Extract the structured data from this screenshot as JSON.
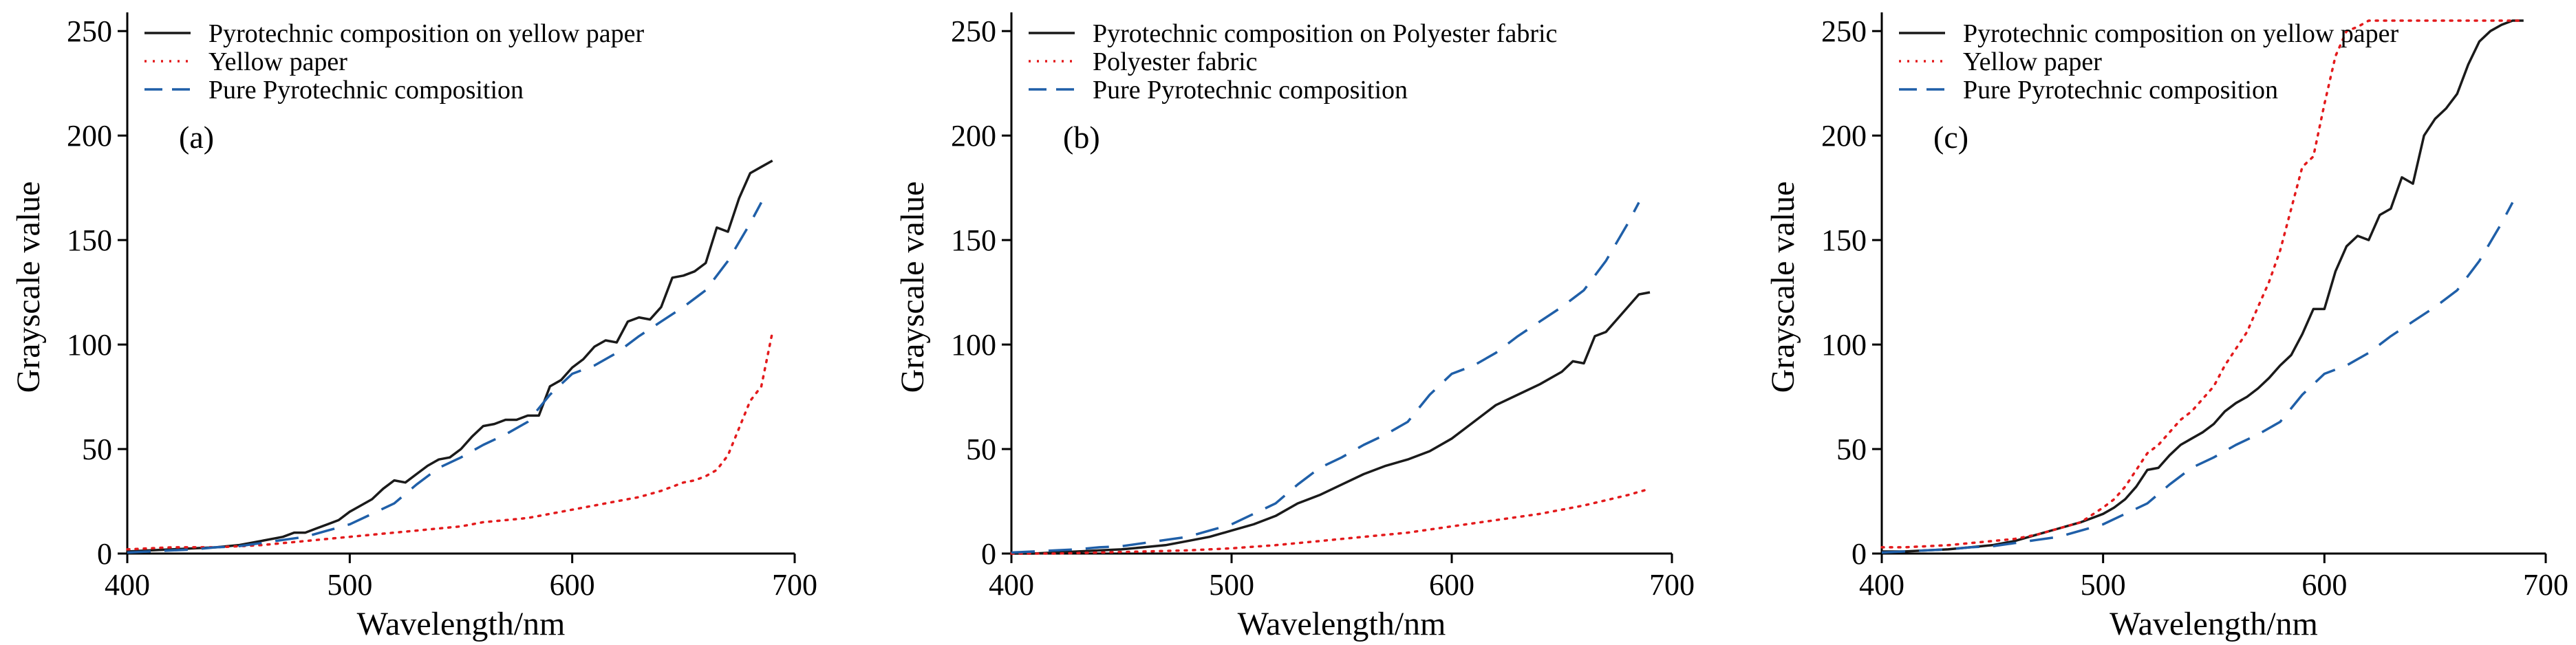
{
  "chart_data": [
    {
      "type": "line",
      "panel_label": "(a)",
      "xlabel": "Wavelength/nm",
      "ylabel": "Grayscale value",
      "xlim": [
        400,
        700
      ],
      "ylim": [
        0,
        255
      ],
      "xticks": [
        400,
        500,
        600,
        700
      ],
      "yticks": [
        0,
        50,
        100,
        150,
        200,
        250
      ],
      "legend_position": "top-left",
      "series": [
        {
          "name": "Pyrotechnic composition on yellow paper",
          "style": "solid",
          "color": "#1a1a1a",
          "x": [
            400,
            410,
            420,
            430,
            440,
            450,
            460,
            470,
            475,
            480,
            485,
            490,
            495,
            500,
            505,
            510,
            515,
            520,
            525,
            530,
            535,
            540,
            545,
            550,
            555,
            560,
            565,
            570,
            575,
            580,
            585,
            590,
            595,
            600,
            605,
            610,
            615,
            620,
            625,
            630,
            635,
            640,
            645,
            650,
            655,
            660,
            665,
            670,
            675,
            680,
            685,
            690
          ],
          "y": [
            1,
            1.5,
            2,
            2.5,
            3,
            4,
            6,
            8,
            10,
            10,
            12,
            14,
            16,
            20,
            23,
            26,
            31,
            35,
            34,
            38,
            42,
            45,
            46,
            50,
            56,
            61,
            62,
            64,
            64,
            66,
            66,
            80,
            83,
            89,
            93,
            99,
            102,
            101,
            111,
            113,
            112,
            118,
            132,
            133,
            135,
            139,
            156,
            154,
            170,
            182,
            185,
            188
          ]
        },
        {
          "name": "Yellow paper",
          "style": "dotted",
          "color": "#e31a1c",
          "x": [
            400,
            410,
            420,
            430,
            440,
            450,
            460,
            470,
            480,
            490,
            500,
            510,
            520,
            530,
            540,
            550,
            560,
            570,
            580,
            590,
            600,
            610,
            620,
            630,
            640,
            650,
            655,
            660,
            665,
            670,
            675,
            680,
            685,
            690
          ],
          "y": [
            2,
            2.5,
            3,
            3,
            3,
            3.5,
            4,
            5,
            6,
            7,
            8,
            9,
            10,
            11,
            12,
            13,
            15,
            16,
            17,
            19,
            21,
            23,
            25,
            27,
            30,
            34,
            35,
            37,
            40,
            47,
            60,
            73,
            80,
            106
          ]
        },
        {
          "name": "Pure Pyrotechnic composition",
          "style": "dashed",
          "color": "#1f5fa8",
          "x": [
            400,
            410,
            420,
            430,
            440,
            450,
            460,
            470,
            480,
            490,
            500,
            510,
            520,
            530,
            540,
            550,
            560,
            570,
            580,
            590,
            600,
            610,
            620,
            630,
            640,
            650,
            660,
            670,
            680,
            685
          ],
          "y": [
            0.5,
            1,
            1.5,
            2,
            3,
            3.5,
            5,
            6.5,
            8,
            11,
            14,
            19,
            24,
            33,
            41,
            46,
            52,
            57,
            63,
            76,
            86,
            90,
            96,
            104,
            111,
            118,
            126,
            140,
            158,
            168
          ]
        }
      ]
    },
    {
      "type": "line",
      "panel_label": "(b)",
      "xlabel": "Wavelength/nm",
      "ylabel": "Grayscale value",
      "xlim": [
        400,
        700
      ],
      "ylim": [
        0,
        255
      ],
      "xticks": [
        400,
        500,
        600,
        700
      ],
      "yticks": [
        0,
        50,
        100,
        150,
        200,
        250
      ],
      "legend_position": "top-left",
      "series": [
        {
          "name": "Pyrotechnic composition on Polyester fabric",
          "style": "solid",
          "color": "#1a1a1a",
          "x": [
            400,
            410,
            420,
            430,
            440,
            450,
            460,
            470,
            480,
            490,
            500,
            510,
            520,
            530,
            540,
            550,
            560,
            570,
            580,
            590,
            600,
            610,
            620,
            630,
            640,
            650,
            655,
            660,
            665,
            670,
            675,
            680,
            685,
            690
          ],
          "y": [
            0,
            0,
            0.5,
            1,
            1.5,
            2,
            3,
            4,
            6,
            8,
            11,
            14,
            18,
            24,
            28,
            33,
            38,
            42,
            45,
            49,
            55,
            63,
            71,
            76,
            81,
            87,
            92,
            91,
            104,
            106,
            112,
            118,
            124,
            125
          ]
        },
        {
          "name": "Polyester fabric",
          "style": "dotted",
          "color": "#e31a1c",
          "x": [
            400,
            420,
            440,
            460,
            480,
            500,
            520,
            540,
            560,
            580,
            600,
            620,
            640,
            660,
            680,
            690
          ],
          "y": [
            0,
            0,
            0.5,
            1,
            1.5,
            2.5,
            4,
            6,
            8,
            10,
            13,
            16,
            19,
            23,
            28,
            31
          ]
        },
        {
          "name": "Pure Pyrotechnic composition",
          "style": "dashed",
          "color": "#1f5fa8",
          "x": [
            400,
            410,
            420,
            430,
            440,
            450,
            460,
            470,
            480,
            490,
            500,
            510,
            520,
            530,
            540,
            550,
            560,
            570,
            580,
            590,
            600,
            610,
            620,
            630,
            640,
            650,
            660,
            670,
            680,
            685
          ],
          "y": [
            0.5,
            1,
            1.5,
            2,
            3,
            3.5,
            5,
            6.5,
            8,
            11,
            14,
            19,
            24,
            33,
            41,
            46,
            52,
            57,
            63,
            76,
            86,
            90,
            96,
            104,
            111,
            118,
            126,
            140,
            158,
            168
          ]
        }
      ]
    },
    {
      "type": "line",
      "panel_label": "(c)",
      "xlabel": "Wavelength/nm",
      "ylabel": "Grayscale value",
      "xlim": [
        400,
        700
      ],
      "ylim": [
        0,
        255
      ],
      "xticks": [
        400,
        500,
        600,
        700
      ],
      "yticks": [
        0,
        50,
        100,
        150,
        200,
        250
      ],
      "legend_position": "top-left",
      "series": [
        {
          "name": "Pyrotechnic composition on yellow paper",
          "style": "solid",
          "color": "#1a1a1a",
          "x": [
            400,
            410,
            420,
            430,
            440,
            450,
            460,
            470,
            480,
            490,
            500,
            505,
            510,
            515,
            520,
            525,
            530,
            535,
            540,
            545,
            550,
            555,
            560,
            565,
            570,
            575,
            580,
            585,
            590,
            595,
            600,
            605,
            610,
            615,
            620,
            625,
            630,
            635,
            640,
            645,
            650,
            655,
            660,
            665,
            670,
            675,
            680,
            685,
            690
          ],
          "y": [
            1,
            1,
            1.5,
            2,
            3,
            4,
            6,
            9,
            12,
            15,
            19,
            22,
            26,
            32,
            40,
            41,
            47,
            52,
            55,
            58,
            62,
            68,
            72,
            75,
            79,
            84,
            90,
            95,
            105,
            117,
            117,
            135,
            147,
            152,
            150,
            162,
            165,
            180,
            177,
            200,
            208,
            213,
            220,
            234,
            245,
            250,
            253,
            255,
            255
          ]
        },
        {
          "name": "Yellow paper",
          "style": "dotted",
          "color": "#e31a1c",
          "x": [
            400,
            410,
            420,
            430,
            440,
            450,
            460,
            470,
            480,
            490,
            500,
            505,
            510,
            515,
            520,
            525,
            530,
            535,
            540,
            545,
            550,
            555,
            560,
            565,
            570,
            575,
            580,
            585,
            590,
            595,
            600,
            605,
            610,
            615,
            620,
            630,
            640,
            650,
            660,
            670,
            680,
            690
          ],
          "y": [
            3,
            3,
            3.5,
            4,
            5,
            6,
            7,
            9,
            12,
            15,
            22,
            26,
            32,
            40,
            48,
            52,
            58,
            64,
            68,
            74,
            80,
            90,
            98,
            106,
            118,
            130,
            145,
            165,
            185,
            190,
            215,
            238,
            250,
            252,
            255,
            255,
            255,
            255,
            255,
            255,
            255,
            255
          ]
        },
        {
          "name": "Pure Pyrotechnic composition",
          "style": "dashed",
          "color": "#1f5fa8",
          "x": [
            400,
            410,
            420,
            430,
            440,
            450,
            460,
            470,
            480,
            490,
            500,
            510,
            520,
            530,
            540,
            550,
            560,
            570,
            580,
            590,
            600,
            610,
            620,
            630,
            640,
            650,
            660,
            670,
            680,
            685
          ],
          "y": [
            0.5,
            1,
            1.5,
            2,
            3,
            3.5,
            5,
            6.5,
            8,
            11,
            14,
            19,
            24,
            33,
            41,
            46,
            52,
            57,
            63,
            76,
            86,
            90,
            96,
            104,
            111,
            118,
            126,
            140,
            158,
            168
          ]
        }
      ]
    }
  ]
}
